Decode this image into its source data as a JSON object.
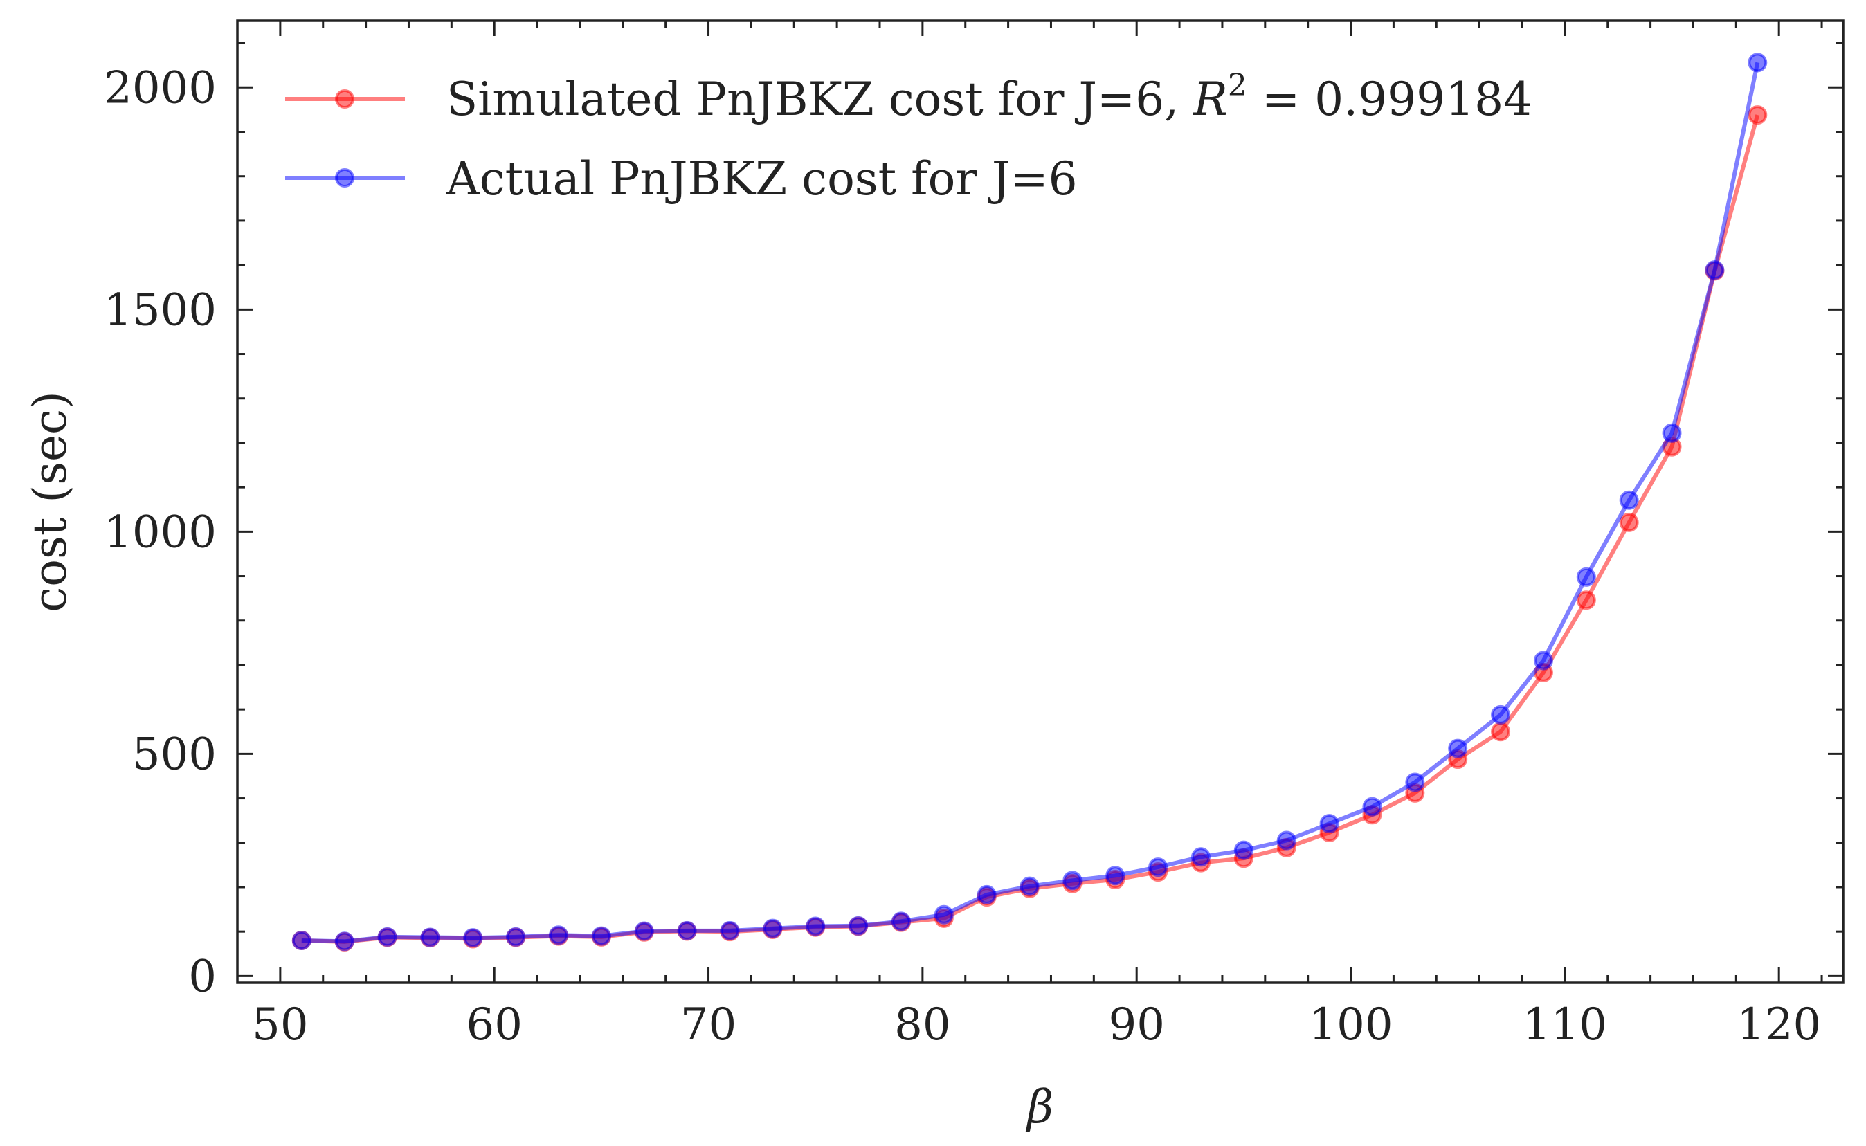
{
  "chart_data": {
    "type": "line",
    "xlabel": "β",
    "ylabel": "cost (sec)",
    "xlim": [
      48,
      123
    ],
    "ylim": [
      -15,
      2150
    ],
    "x_ticks": [
      50,
      60,
      70,
      80,
      90,
      100,
      110,
      120
    ],
    "y_ticks": [
      0,
      500,
      1000,
      1500,
      2000
    ],
    "grid": false,
    "legend_position": "top-left",
    "x": [
      51,
      53,
      55,
      57,
      59,
      61,
      63,
      65,
      67,
      69,
      71,
      73,
      75,
      77,
      79,
      81,
      83,
      85,
      87,
      89,
      91,
      93,
      95,
      97,
      99,
      101,
      103,
      105,
      107,
      109,
      111,
      113,
      115,
      117,
      119
    ],
    "series": [
      {
        "name": "Simulated PnJBKZ cost for J=6, ",
        "name_math": "R",
        "name_sup": "2",
        "name_value": " = 0.999184",
        "color": "#ff0000",
        "values": [
          80,
          77,
          87,
          86,
          84,
          87,
          90,
          88,
          99,
          101,
          100,
          105,
          110,
          112,
          121,
          130,
          178,
          197,
          208,
          217,
          234,
          255,
          265,
          289,
          323,
          363,
          412,
          488,
          550,
          683,
          846,
          1021,
          1191,
          1587,
          1938
        ]
      },
      {
        "name": "Actual PnJBKZ cost for J=6",
        "color": "#0000ff",
        "values": [
          80,
          78,
          88,
          87,
          86,
          88,
          92,
          90,
          101,
          102,
          102,
          107,
          112,
          113,
          123,
          138,
          183,
          202,
          215,
          226,
          245,
          268,
          283,
          305,
          343,
          381,
          436,
          512,
          588,
          710,
          898,
          1071,
          1222,
          1589,
          2056
        ]
      }
    ]
  }
}
